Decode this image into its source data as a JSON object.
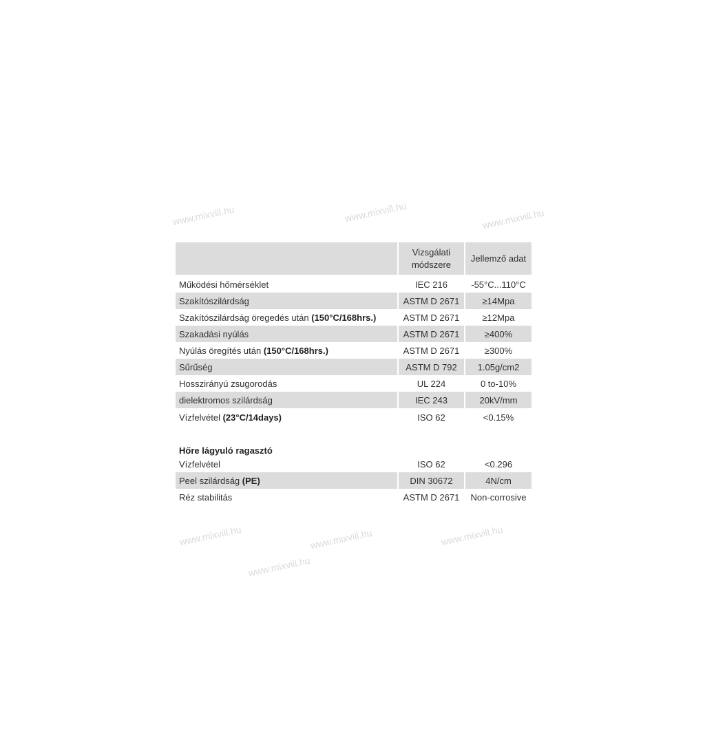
{
  "header": {
    "col_property": "",
    "col_method": "Vizsgálati módszere",
    "col_value": "Jellemző adat"
  },
  "rows": [
    {
      "label": "Működési hőmérséklet",
      "bold": "",
      "method": "IEC 216",
      "value": "-55°C...110°C"
    },
    {
      "label": "Szakítószilárdság",
      "bold": "",
      "method": "ASTM D 2671",
      "value": "≥14Mpa"
    },
    {
      "label": "Szakítószilárdság öregedés után ",
      "bold": "(150°C/168hrs.)",
      "method": "ASTM D 2671",
      "value": "≥12Mpa"
    },
    {
      "label": "Szakadási nyúlás",
      "bold": "",
      "method": "ASTM D 2671",
      "value": "≥400%"
    },
    {
      "label": "Nyúlás öregítés után ",
      "bold": "(150°C/168hrs.)",
      "method": "ASTM D 2671",
      "value": "≥300%"
    },
    {
      "label": "Sűrűség",
      "bold": "",
      "method": "ASTM D 792",
      "value": "1.05g/cm2"
    },
    {
      "label": "Hosszirányú zsugorodás",
      "bold": "",
      "method": "UL 224",
      "value": "0 to-10%"
    },
    {
      "label": "dielektromos szilárdság",
      "bold": "",
      "method": "IEC 243",
      "value": "20kV/mm"
    },
    {
      "label": "Vízfelvétel ",
      "bold": "(23°C/14days)",
      "method": "ISO 62",
      "value": "<0.15%"
    }
  ],
  "section_title": "Hőre lágyuló ragasztó",
  "section_rows": [
    {
      "label": "Vízfelvétel",
      "bold": "",
      "method": "ISO 62",
      "value": "<0.296"
    },
    {
      "label": "Peel szilárdság ",
      "bold": "(PE)",
      "method": "DIN 30672",
      "value": "4N/cm"
    },
    {
      "label": "Réz stabilitás",
      "bold": "",
      "method": "ASTM D 2671",
      "value": "Non-corrosive"
    }
  ],
  "watermark": "www.mixvill.hu",
  "colors": {
    "row_shade": "#dcdcdc",
    "text": "#2f2f2f"
  }
}
